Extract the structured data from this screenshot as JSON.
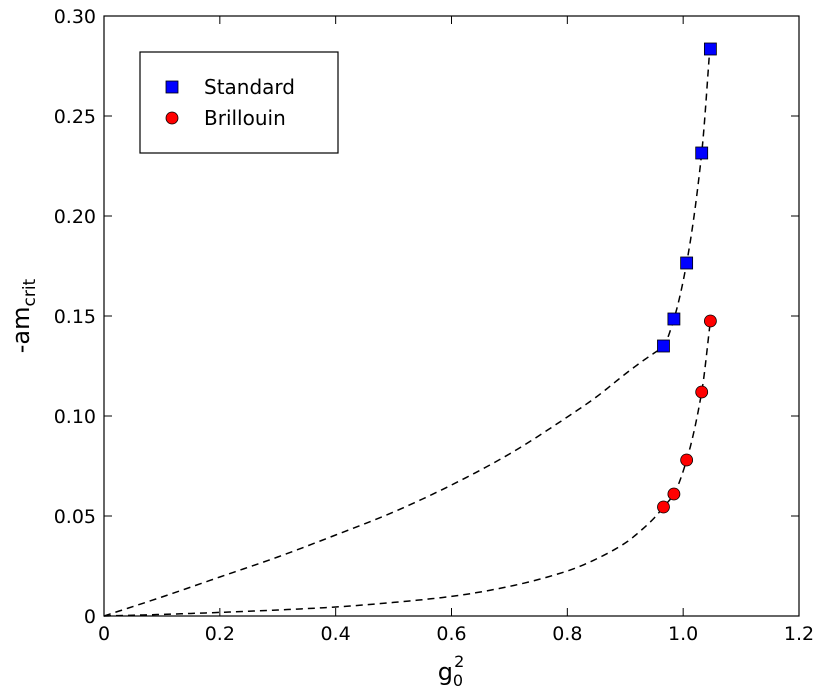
{
  "chart_data": {
    "type": "scatter",
    "title": "",
    "xlabel": {
      "base": "g",
      "sub": "0",
      "sup": "2"
    },
    "ylabel": {
      "base": "-am",
      "sub": "crit"
    },
    "xlim": [
      0,
      1.2
    ],
    "ylim": [
      0,
      0.3
    ],
    "xticks": [
      0,
      0.2,
      0.4,
      0.6,
      0.8,
      1.0,
      1.2
    ],
    "xtick_labels": [
      "0",
      "0.2",
      "0.4",
      "0.6",
      "0.8",
      "1.0",
      "1.2"
    ],
    "yticks": [
      0,
      0.05,
      0.1,
      0.15,
      0.2,
      0.25,
      0.3
    ],
    "ytick_labels": [
      "0",
      "0.05",
      "0.10",
      "0.15",
      "0.20",
      "0.25",
      "0.30"
    ],
    "grid": false,
    "legend_position": "top-left",
    "series": [
      {
        "name": "Standard",
        "marker": "square",
        "color": "#0000ff",
        "x": [
          0.966,
          0.984,
          1.006,
          1.032,
          1.047
        ],
        "y": [
          0.135,
          0.1485,
          0.1765,
          0.2315,
          0.2835
        ]
      },
      {
        "name": "Brillouin",
        "marker": "circle",
        "color": "#ff0000",
        "x": [
          0.966,
          0.984,
          1.006,
          1.032,
          1.047
        ],
        "y": [
          0.0545,
          0.061,
          0.078,
          0.112,
          0.1475
        ]
      }
    ],
    "fit_curves": [
      {
        "style": "dashed",
        "color": "#000000",
        "x": [
          0,
          0.1,
          0.2,
          0.3,
          0.4,
          0.5,
          0.6,
          0.7,
          0.8,
          0.85,
          0.9,
          0.93,
          0.95,
          0.966,
          0.984,
          1.006,
          1.032,
          1.047
        ],
        "y": [
          0,
          0.0095,
          0.0195,
          0.0295,
          0.0405,
          0.052,
          0.0655,
          0.081,
          0.0995,
          0.1095,
          0.121,
          0.1275,
          0.1315,
          0.135,
          0.1485,
          0.1765,
          0.2315,
          0.2875
        ]
      },
      {
        "style": "dashed",
        "color": "#000000",
        "x": [
          0,
          0.1,
          0.2,
          0.3,
          0.4,
          0.5,
          0.6,
          0.7,
          0.8,
          0.85,
          0.9,
          0.93,
          0.95,
          0.966,
          0.984,
          1.006,
          1.032,
          1.047
        ],
        "y": [
          0,
          0.0008,
          0.0018,
          0.003,
          0.0045,
          0.0068,
          0.0098,
          0.0148,
          0.0225,
          0.0285,
          0.0365,
          0.0435,
          0.049,
          0.0545,
          0.061,
          0.078,
          0.112,
          0.1475
        ]
      }
    ]
  }
}
